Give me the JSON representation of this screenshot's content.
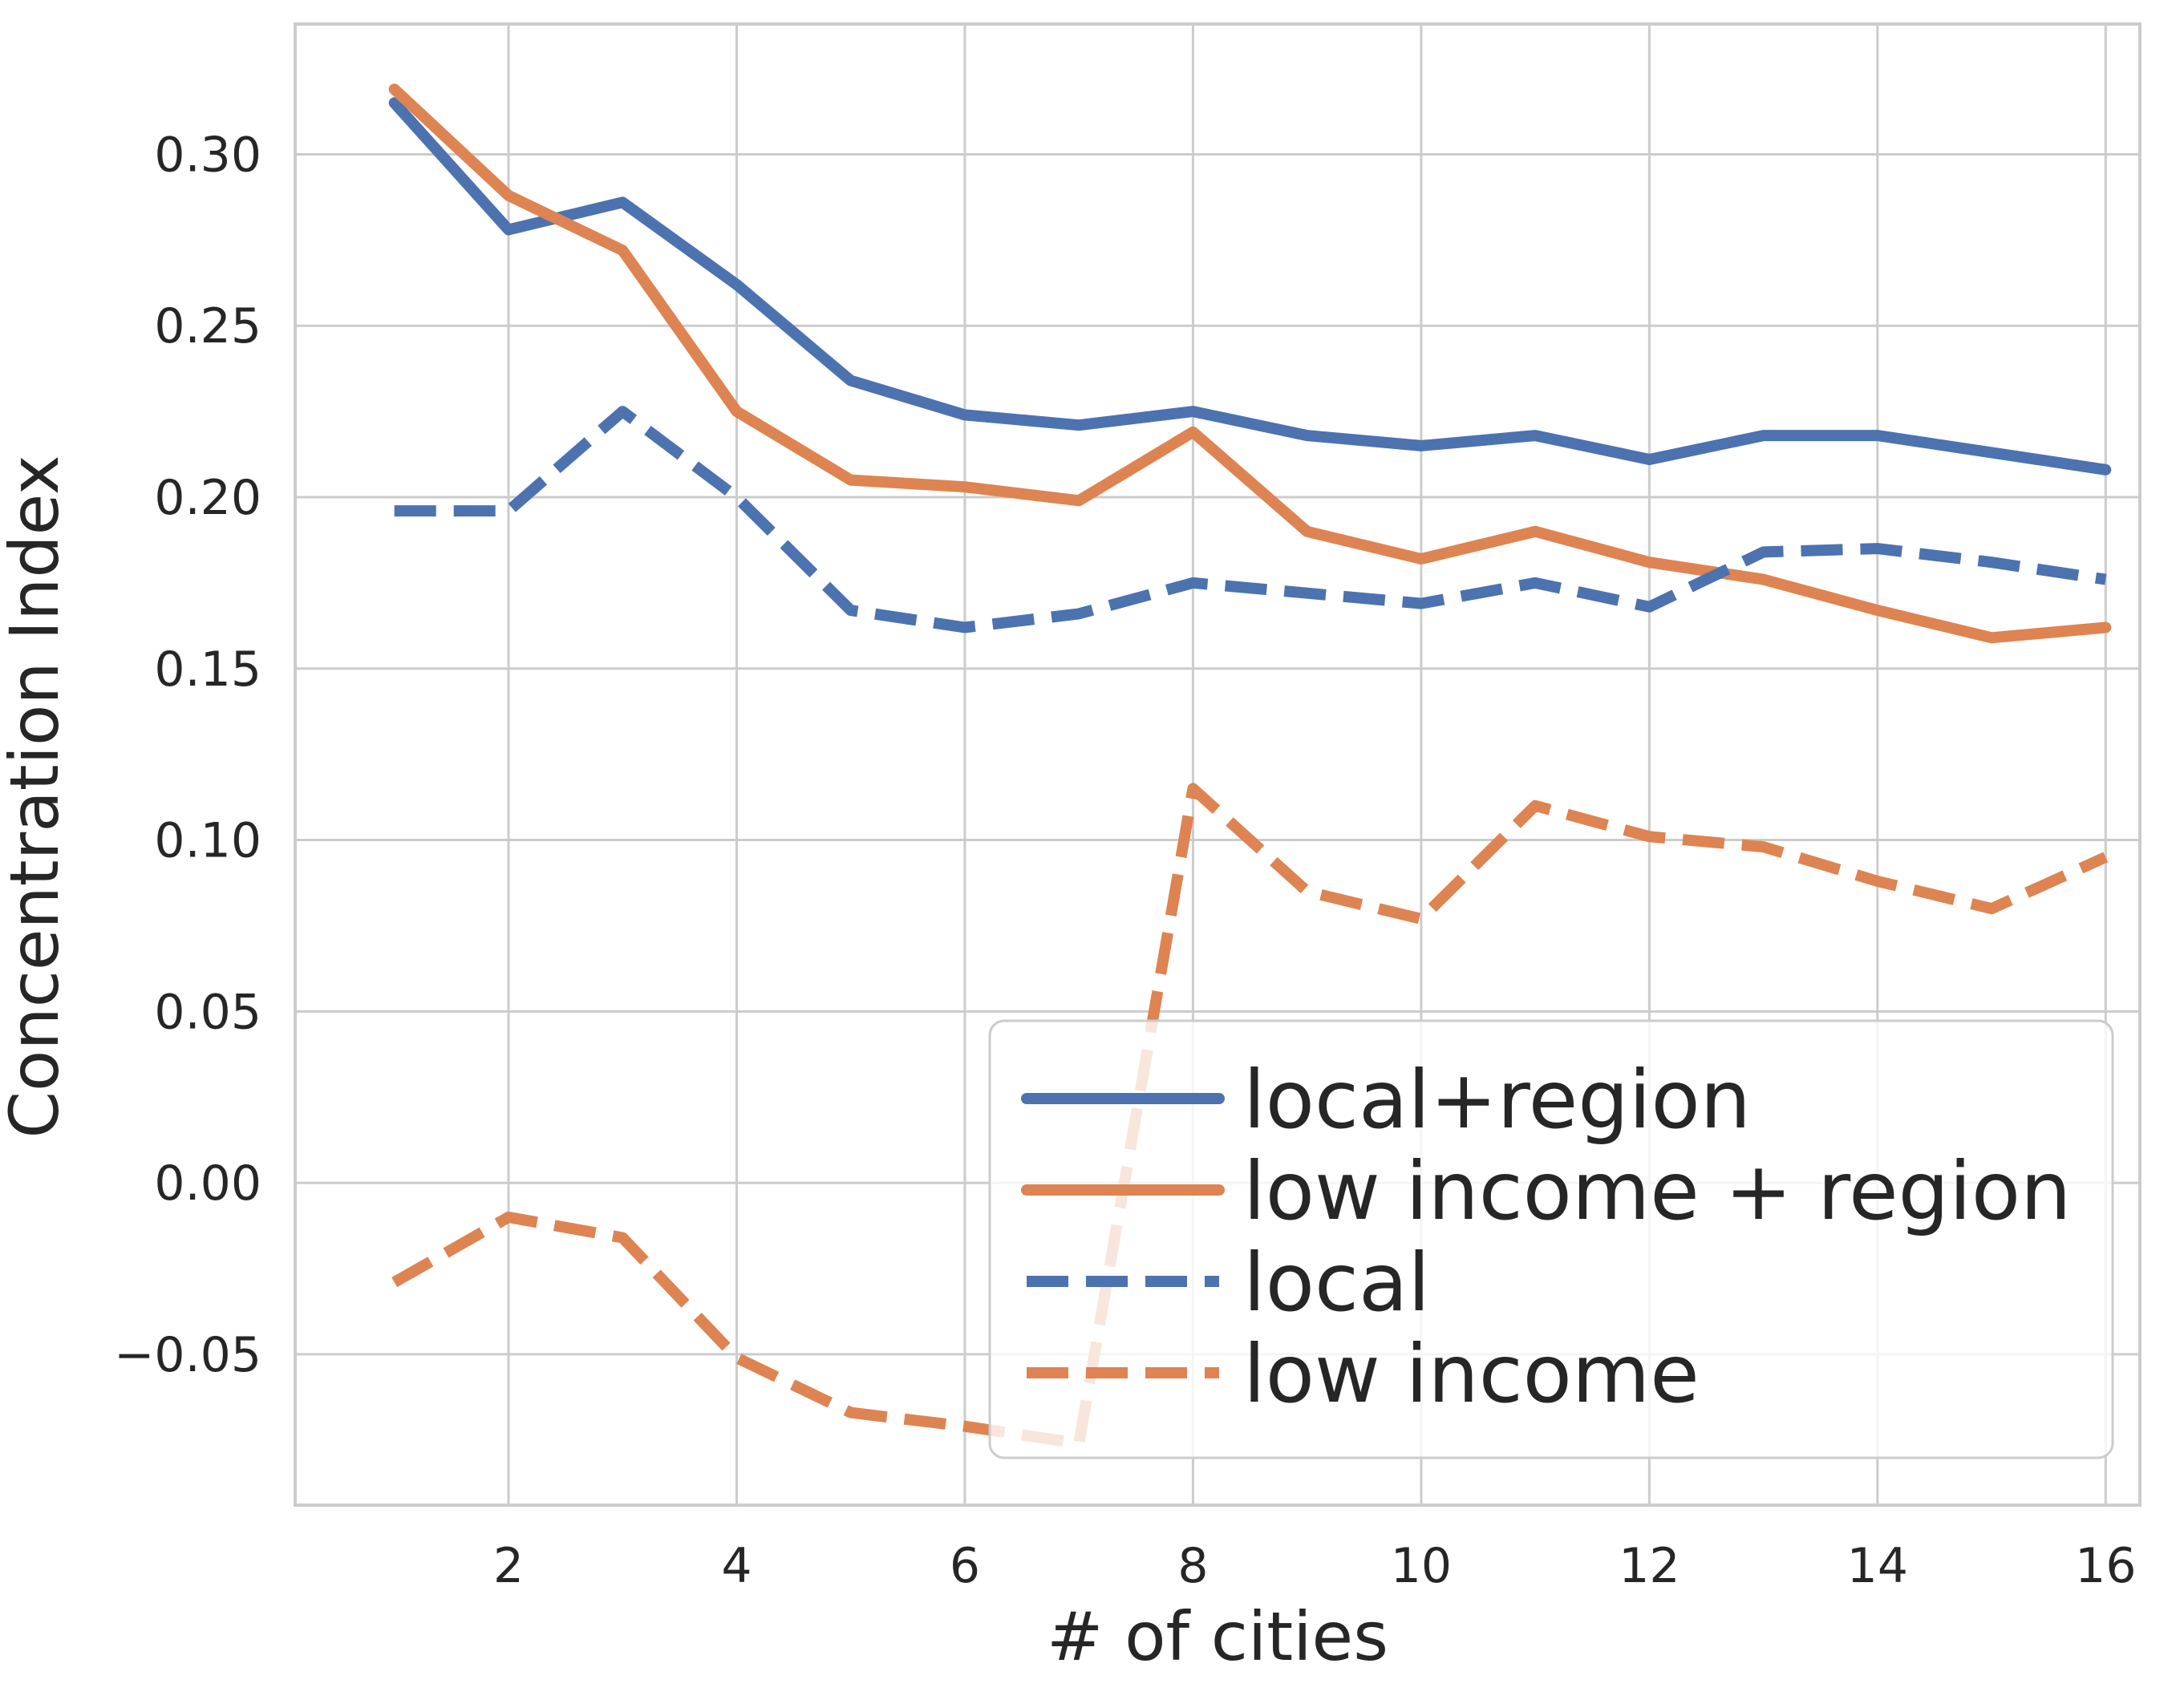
{
  "chart_data": {
    "type": "line",
    "title": "",
    "xlabel": "# of cities",
    "ylabel": "Concentration Index",
    "xlim": [
      0.13,
      16.3
    ],
    "ylim": [
      -0.094,
      0.338
    ],
    "xticks": [
      2,
      4,
      6,
      8,
      10,
      12,
      14,
      16
    ],
    "xtick_labels": [
      "2",
      "4",
      "6",
      "8",
      "10",
      "12",
      "14",
      "16"
    ],
    "yticks": [
      -0.05,
      0.0,
      0.05,
      0.1,
      0.15,
      0.2,
      0.25,
      0.3
    ],
    "ytick_labels": [
      "−0.05",
      "0.00",
      "0.05",
      "0.10",
      "0.15",
      "0.20",
      "0.25",
      "0.30"
    ],
    "grid": true,
    "legend_position": "lower-right",
    "x": [
      1,
      2,
      3,
      4,
      5,
      6,
      7,
      8,
      9,
      10,
      11,
      12,
      13,
      14,
      15,
      16
    ],
    "series": [
      {
        "name": "local+region",
        "color": "#4c72b0",
        "style": "solid",
        "values": [
          0.315,
          0.278,
          0.286,
          0.262,
          0.234,
          0.224,
          0.221,
          0.225,
          0.218,
          0.215,
          0.218,
          0.211,
          0.218,
          0.218,
          0.213,
          0.208
        ]
      },
      {
        "name": "low income + region",
        "color": "#dd8452",
        "style": "solid",
        "values": [
          0.319,
          0.288,
          0.272,
          0.225,
          0.205,
          0.203,
          0.199,
          0.219,
          0.19,
          0.182,
          0.19,
          0.181,
          0.176,
          0.167,
          0.159,
          0.162
        ]
      },
      {
        "name": "local",
        "color": "#4c72b0",
        "style": "dashed",
        "values": [
          0.196,
          0.196,
          0.225,
          0.2,
          0.167,
          0.162,
          0.166,
          0.175,
          0.172,
          0.169,
          0.175,
          0.168,
          0.184,
          0.185,
          0.181,
          0.176
        ]
      },
      {
        "name": "low income",
        "color": "#dd8452",
        "style": "dashed",
        "values": [
          -0.029,
          -0.01,
          -0.016,
          -0.051,
          -0.067,
          -0.071,
          -0.076,
          0.115,
          0.085,
          0.077,
          0.11,
          0.101,
          0.098,
          0.088,
          0.08,
          0.095
        ]
      }
    ]
  }
}
